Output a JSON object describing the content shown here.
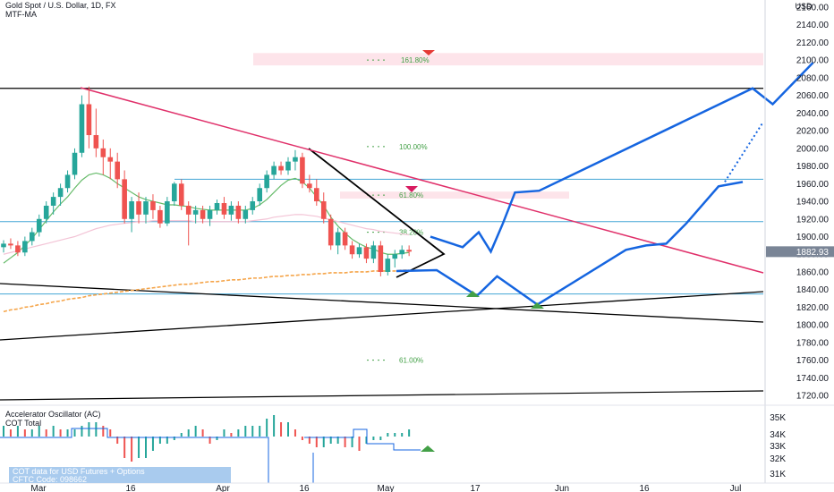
{
  "header": {
    "symbol_line": "Gold Spot / U.S. Dollar, 1D, FX",
    "indicator": "MTF-MA",
    "oscillator_title": "Accelerator Oscillator (AC)",
    "cot_title": "COT Total",
    "cot_badge_line1": "COT data for USD Futures + Options",
    "cot_badge_line2": "CFTC Code: 098662"
  },
  "axis": {
    "currency_label": "USD",
    "last_price": "1882.93",
    "last_price_value": 1882.93
  },
  "colors": {
    "up": "#26a69a",
    "down": "#ef5350",
    "trendline_pink": "#e0306a",
    "projection_blue": "#1565e0",
    "level_line": "#42a5d5",
    "ma_green": "#66bb6a",
    "ma_orange": "#f5a54a",
    "fib_text": "#43a047",
    "zone_pink": "#fde4ea"
  },
  "chart_data": [
    {
      "type": "candlestick",
      "title": "Gold Spot / U.S. Dollar, 1D, FX",
      "x_ticks": [
        "Mar",
        "16",
        "Apr",
        "16",
        "May",
        "17",
        "Jun",
        "16",
        "Jul"
      ],
      "y_ticks": [
        1720,
        1740,
        1760,
        1780,
        1800,
        1820,
        1840,
        1860,
        1880,
        1900,
        1920,
        1940,
        1960,
        1980,
        2000,
        2020,
        2040,
        2060,
        2080,
        2100,
        2120,
        2140,
        2160
      ],
      "y_unit": "USD",
      "ylim": [
        1712,
        2162
      ],
      "grid": false,
      "candles": [
        [
          1888,
          1896,
          1882,
          1892
        ],
        [
          1892,
          1898,
          1886,
          1890
        ],
        [
          1890,
          1895,
          1878,
          1882
        ],
        [
          1882,
          1900,
          1878,
          1895
        ],
        [
          1895,
          1910,
          1890,
          1905
        ],
        [
          1905,
          1925,
          1900,
          1920
        ],
        [
          1920,
          1940,
          1915,
          1935
        ],
        [
          1935,
          1950,
          1925,
          1945
        ],
        [
          1945,
          1960,
          1935,
          1955
        ],
        [
          1955,
          1975,
          1950,
          1970
        ],
        [
          1970,
          2000,
          1965,
          1995
        ],
        [
          1995,
          2060,
          1990,
          2050
        ],
        [
          2050,
          2070,
          2000,
          2015
        ],
        [
          2015,
          2045,
          1990,
          2000
        ],
        [
          2000,
          2010,
          1970,
          1990
        ],
        [
          1990,
          2000,
          1965,
          1985
        ],
        [
          1985,
          1995,
          1955,
          1965
        ],
        [
          1965,
          1975,
          1915,
          1920
        ],
        [
          1920,
          1945,
          1905,
          1940
        ],
        [
          1940,
          1950,
          1915,
          1925
        ],
        [
          1925,
          1945,
          1915,
          1940
        ],
        [
          1940,
          1948,
          1920,
          1930
        ],
        [
          1930,
          1935,
          1910,
          1915
        ],
        [
          1915,
          1945,
          1912,
          1940
        ],
        [
          1940,
          1962,
          1935,
          1960
        ],
        [
          1960,
          1965,
          1930,
          1935
        ],
        [
          1935,
          1940,
          1890,
          1925
        ],
        [
          1925,
          1935,
          1915,
          1930
        ],
        [
          1930,
          1935,
          1915,
          1920
        ],
        [
          1920,
          1935,
          1912,
          1930
        ],
        [
          1930,
          1942,
          1925,
          1938
        ],
        [
          1938,
          1945,
          1920,
          1925
        ],
        [
          1925,
          1940,
          1918,
          1935
        ],
        [
          1935,
          1940,
          1915,
          1920
        ],
        [
          1920,
          1935,
          1915,
          1930
        ],
        [
          1930,
          1945,
          1925,
          1940
        ],
        [
          1940,
          1960,
          1935,
          1955
        ],
        [
          1955,
          1975,
          1950,
          1970
        ],
        [
          1970,
          1985,
          1965,
          1980
        ],
        [
          1980,
          1985,
          1970,
          1975
        ],
        [
          1975,
          1990,
          1970,
          1985
        ],
        [
          1985,
          1998,
          1975,
          1990
        ],
        [
          1990,
          1995,
          1955,
          1960
        ],
        [
          1960,
          1970,
          1950,
          1955
        ],
        [
          1955,
          1965,
          1935,
          1940
        ],
        [
          1940,
          1950,
          1915,
          1920
        ],
        [
          1920,
          1925,
          1885,
          1890
        ],
        [
          1890,
          1910,
          1880,
          1905
        ],
        [
          1905,
          1910,
          1885,
          1890
        ],
        [
          1890,
          1895,
          1875,
          1880
        ],
        [
          1880,
          1892,
          1876,
          1888
        ],
        [
          1888,
          1892,
          1870,
          1875
        ],
        [
          1875,
          1895,
          1870,
          1890
        ],
        [
          1890,
          1895,
          1855,
          1860
        ],
        [
          1860,
          1880,
          1856,
          1875
        ],
        [
          1875,
          1885,
          1865,
          1880
        ],
        [
          1880,
          1890,
          1875,
          1885
        ],
        [
          1885,
          1890,
          1878,
          1883
        ]
      ],
      "moving_averages": [
        {
          "values": [
            1870,
            1876,
            1882,
            1890,
            1898,
            1908,
            1918,
            1928,
            1937,
            1945,
            1955,
            1964,
            1970,
            1972,
            1970,
            1966,
            1960,
            1955,
            1950,
            1945,
            1942,
            1940,
            1938,
            1936,
            1936,
            1935,
            1934,
            1932,
            1931,
            1930,
            1930,
            1930,
            1930,
            1930,
            1930,
            1932,
            1936,
            1942,
            1950,
            1958,
            1964,
            1966,
            1962,
            1955,
            1945,
            1935,
            1922,
            1912,
            1904,
            1897,
            1892,
            1888,
            1886,
            1882,
            1880,
            1880,
            1881,
            1882
          ]
        },
        {
          "values": [
            1880,
            1882,
            1884,
            1886,
            1888,
            1890,
            1892,
            1894,
            1896,
            1898,
            1900,
            1903,
            1906,
            1909,
            1911,
            1913,
            1914,
            1915,
            1916,
            1917,
            1917,
            1918,
            1918,
            1918,
            1918,
            1918,
            1918,
            1917,
            1917,
            1917,
            1917,
            1917,
            1917,
            1917,
            1917,
            1918,
            1919,
            1920,
            1922,
            1923,
            1924,
            1925,
            1925,
            1924,
            1923,
            1921,
            1919,
            1917,
            1915,
            1913,
            1911,
            1909,
            1908,
            1906,
            1905,
            1904,
            1903,
            1902
          ]
        },
        {
          "values": [
            1815,
            1817,
            1818,
            1820,
            1821,
            1823,
            1824,
            1826,
            1827,
            1829,
            1830,
            1831,
            1833,
            1834,
            1835,
            1836,
            1837,
            1838,
            1839,
            1840,
            1841,
            1842,
            1843,
            1844,
            1845,
            1846,
            1846,
            1847,
            1848,
            1849,
            1849,
            1850,
            1851,
            1851,
            1852,
            1853,
            1853,
            1854,
            1855,
            1855,
            1856,
            1856,
            1857,
            1857,
            1858,
            1858,
            1859,
            1859,
            1859,
            1860,
            1860,
            1860,
            1861,
            1861,
            1861,
            1861,
            1862,
            1862
          ]
        }
      ],
      "fib_levels": [
        {
          "label": "161.80%",
          "value": 2100
        },
        {
          "label": "100.00%",
          "value": 2002
        },
        {
          "label": "61.80%",
          "value": 1947
        },
        {
          "label": "38.20%",
          "value": 1905
        },
        {
          "label": "61.00%",
          "value": 1760
        }
      ],
      "horizontal_levels": [
        1965,
        1917,
        1835
      ],
      "black_level": 2068,
      "pink_zones": [
        [
          2094,
          2108
        ],
        [
          1943,
          1951
        ]
      ],
      "projection_up": [
        [
          0,
          1900
        ],
        [
          8,
          1888
        ],
        [
          12,
          1905
        ],
        [
          15,
          1883
        ],
        [
          18,
          1915
        ],
        [
          21,
          1950
        ],
        [
          27,
          1952
        ],
        [
          80,
          2068
        ],
        [
          85,
          2050
        ],
        [
          95,
          2097
        ]
      ],
      "projection_down": [
        [
          0,
          1861
        ],
        [
          10,
          1862
        ],
        [
          20,
          1833
        ],
        [
          25,
          1855
        ],
        [
          35,
          1823
        ],
        [
          57,
          1885
        ],
        [
          62,
          1890
        ],
        [
          67,
          1892
        ],
        [
          72,
          1915
        ],
        [
          80,
          1957
        ],
        [
          86,
          1962
        ]
      ]
    },
    {
      "type": "bar",
      "title": "Accelerator Oscillator (AC)",
      "y_ticks": [
        "35K",
        "34K",
        "33K",
        "32K",
        "31K"
      ],
      "values": [
        3,
        2,
        3,
        2,
        2,
        3,
        2,
        3,
        2,
        2,
        2,
        3,
        4,
        4,
        3,
        2,
        -2,
        -6,
        -7,
        -6,
        -6,
        -4,
        -2,
        -2,
        -1,
        1,
        2,
        3,
        2,
        -2,
        -1,
        2,
        1,
        2,
        3,
        3,
        3,
        5,
        6,
        4,
        4,
        2,
        -1,
        -2,
        -3,
        -3,
        -2,
        -2,
        -3,
        -3,
        -4,
        -2,
        -1,
        -1,
        1,
        1,
        1,
        2
      ]
    }
  ]
}
